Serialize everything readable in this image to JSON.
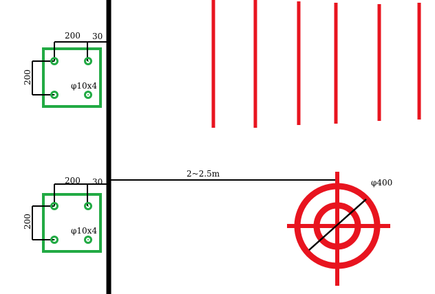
{
  "colors": {
    "background": "#ffffff",
    "line": "#000000",
    "plate": "#22aa44",
    "bolt": "#22aa44",
    "red": "#e8141f"
  },
  "top_detail": {
    "dim_horizontal": "200",
    "dim_edge": "30",
    "dim_vertical": "200",
    "bolt_label": "φ10x4"
  },
  "bottom_detail": {
    "dim_horizontal": "200",
    "dim_edge": "30",
    "dim_vertical": "200",
    "bolt_label": "φ10x4"
  },
  "spacing_label": "2~2.5m",
  "pile_diameter_label": "φ400"
}
